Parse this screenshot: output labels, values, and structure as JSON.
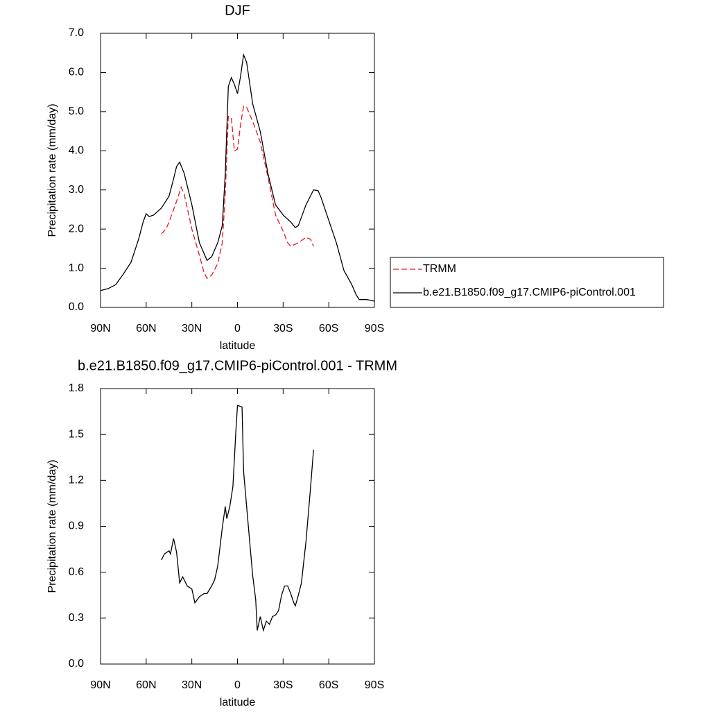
{
  "chart_data": [
    {
      "type": "line",
      "title": "DJF",
      "xlabel": "latitude",
      "ylabel": "Precipitation rate (mm/day)",
      "xlim": [
        90,
        -90
      ],
      "xticks": [
        {
          "value": 90,
          "label": "90N"
        },
        {
          "value": 60,
          "label": "60N"
        },
        {
          "value": 30,
          "label": "30N"
        },
        0,
        {
          "value": -30,
          "label": "30S"
        },
        {
          "value": -60,
          "label": "60S"
        },
        {
          "value": -90,
          "label": "90S"
        }
      ],
      "ylim": [
        0,
        7
      ],
      "yticks": [
        {
          "value": 0,
          "label": "0.0"
        },
        {
          "value": 1,
          "label": "1.0"
        },
        {
          "value": 2,
          "label": "2.0"
        },
        {
          "value": 3,
          "label": "3.0"
        },
        {
          "value": 4,
          "label": "4.0"
        },
        {
          "value": 5,
          "label": "5.0"
        },
        {
          "value": 6,
          "label": "6.0"
        },
        {
          "value": 7,
          "label": "7.0"
        }
      ],
      "legend": "right",
      "series": [
        {
          "name": "TRMM",
          "color": "#e8141e",
          "style": "dashed",
          "x": [
            50,
            47,
            45,
            40,
            37,
            35,
            30,
            25,
            22,
            20,
            17,
            13,
            10,
            8,
            6,
            4,
            2,
            0,
            -2,
            -4,
            -6,
            -10,
            -15,
            -20,
            -25,
            -30,
            -33,
            -35,
            -40,
            -45,
            -48,
            -50
          ],
          "values": [
            1.88,
            2.0,
            2.18,
            2.71,
            3.07,
            2.89,
            2.0,
            1.33,
            0.89,
            0.74,
            0.82,
            1.12,
            1.65,
            2.89,
            4.88,
            4.84,
            3.99,
            4.04,
            4.66,
            5.14,
            5.11,
            4.75,
            4.22,
            3.33,
            2.36,
            1.95,
            1.65,
            1.56,
            1.65,
            1.79,
            1.74,
            1.56
          ]
        },
        {
          "name": "b.e21.B1850.f09_g17.CMIP6-piControl.001",
          "color": "#000000",
          "style": "solid",
          "x": [
            90,
            85,
            80,
            75,
            70,
            65,
            62,
            60,
            58,
            55,
            50,
            45,
            42,
            40,
            38,
            35,
            30,
            25,
            20,
            17,
            13,
            10,
            8,
            6,
            4,
            2,
            0,
            -2,
            -4,
            -6,
            -8,
            -10,
            -15,
            -20,
            -25,
            -30,
            -35,
            -38,
            -40,
            -45,
            -50,
            -53,
            -55,
            -60,
            -65,
            -70,
            -75,
            -78,
            -80,
            -85,
            -90
          ],
          "values": [
            0.43,
            0.48,
            0.58,
            0.85,
            1.15,
            1.74,
            2.18,
            2.39,
            2.32,
            2.36,
            2.54,
            2.84,
            3.28,
            3.6,
            3.71,
            3.42,
            2.62,
            1.65,
            1.2,
            1.29,
            1.65,
            2.09,
            3.42,
            5.64,
            5.87,
            5.69,
            5.46,
            5.9,
            6.45,
            6.26,
            5.73,
            5.2,
            4.49,
            3.42,
            2.62,
            2.36,
            2.18,
            2.04,
            2.09,
            2.62,
            3.0,
            2.98,
            2.8,
            2.22,
            1.65,
            0.94,
            0.59,
            0.32,
            0.2,
            0.2,
            0.16
          ]
        }
      ]
    },
    {
      "type": "line",
      "title": "b.e21.B1850.f09_g17.CMIP6-piControl.001 - TRMM",
      "xlabel": "latitude",
      "ylabel": "Precipitation rate (mm/day)",
      "xlim": [
        90,
        -90
      ],
      "xticks": [
        {
          "value": 90,
          "label": "90N"
        },
        {
          "value": 60,
          "label": "60N"
        },
        {
          "value": 30,
          "label": "30N"
        },
        0,
        {
          "value": -30,
          "label": "30S"
        },
        {
          "value": -60,
          "label": "60S"
        },
        {
          "value": -90,
          "label": "90S"
        }
      ],
      "ylim": [
        0,
        1.8
      ],
      "yticks": [
        {
          "value": 0,
          "label": "0.0"
        },
        0.3,
        0.6,
        0.9,
        1.2,
        1.5,
        1.8
      ],
      "series": [
        {
          "color": "#000000",
          "style": "solid",
          "x": [
            50,
            48,
            45,
            44,
            42,
            40,
            38,
            36,
            33,
            30,
            28,
            25,
            22,
            20,
            17,
            15,
            13,
            10,
            8,
            7,
            5,
            3,
            1,
            0,
            -3,
            -4,
            -6,
            -8,
            -10,
            -12,
            -13,
            -15,
            -17,
            -19,
            -21,
            -23,
            -25,
            -27,
            -29,
            -31,
            -33,
            -35,
            -37,
            -38,
            -40,
            -42,
            -45,
            -48,
            -50
          ],
          "values": [
            0.68,
            0.72,
            0.74,
            0.72,
            0.82,
            0.73,
            0.53,
            0.57,
            0.51,
            0.49,
            0.4,
            0.44,
            0.46,
            0.46,
            0.51,
            0.55,
            0.64,
            0.89,
            1.03,
            0.95,
            1.03,
            1.16,
            1.53,
            1.69,
            1.68,
            1.26,
            1.03,
            0.8,
            0.58,
            0.42,
            0.22,
            0.31,
            0.22,
            0.28,
            0.26,
            0.31,
            0.32,
            0.35,
            0.45,
            0.51,
            0.51,
            0.46,
            0.4,
            0.38,
            0.45,
            0.53,
            0.8,
            1.15,
            1.4
          ]
        }
      ]
    }
  ]
}
